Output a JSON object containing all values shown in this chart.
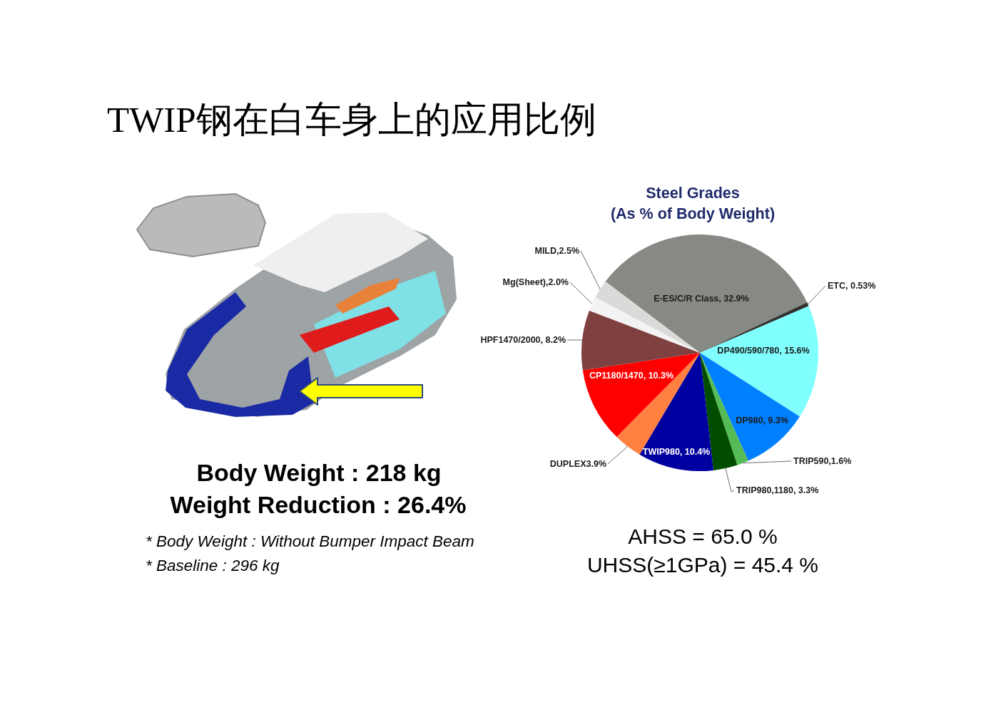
{
  "chart_data": {
    "type": "pie",
    "title": "TWIP钢在白车身上的应用比例",
    "subtitle": "Steel Grades\n(As % of Body Weight)",
    "categories": [
      "E-ES/C/R Class",
      "ETC",
      "DP490/590/780",
      "DP980",
      "TRIP590",
      "TRIP980,1180",
      "TWIP980",
      "DUPLEX",
      "CP1180/1470",
      "HPF1470/2000",
      "Mg(Sheet)",
      "MILD"
    ],
    "values": [
      32.9,
      0.53,
      15.6,
      9.3,
      1.6,
      3.3,
      10.4,
      3.9,
      10.3,
      8.2,
      2.0,
      2.5
    ],
    "colors": [
      "#878a84",
      "#333333",
      "#80ffff",
      "#0080ff",
      "#55bb55",
      "#004d00",
      "#0000a0",
      "#ff8040",
      "#ff0000",
      "#7f4040",
      "#f3f3f3",
      "#d9dbd9"
    ],
    "value_labels": [
      "32.9%",
      "0.53%",
      "15.6%",
      "9.3%",
      "1.6%",
      "3.3%",
      "10.4%",
      "3.9%",
      "10.3%",
      "8.2%",
      "2.0%",
      "2.5%"
    ],
    "annotations": [
      "Body Weight : 218 kg",
      "Weight Reduction : 26.4%",
      "* Body Weight : Without Bumper Impact Beam",
      "* Baseline : 296 kg",
      "AHSS = 65.0 %",
      "UHSS(≥1GPa) = 45.4 %"
    ]
  }
}
